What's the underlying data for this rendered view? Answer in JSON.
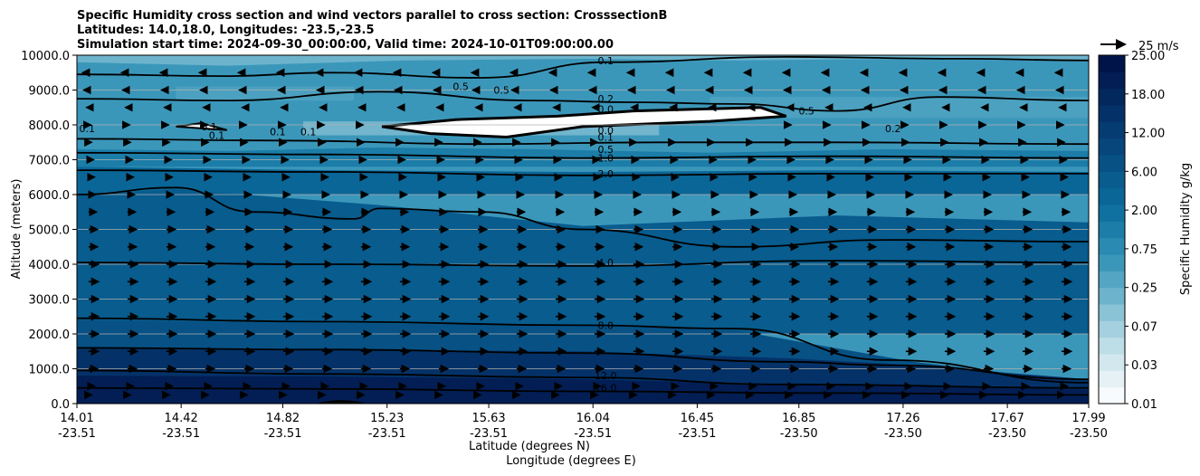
{
  "chart_data": {
    "type": "contourf",
    "title_lines": [
      "Specific Humidity cross section and wind vectors parallel to cross section: CrosssectionB",
      "Latitudes: 14.0,18.0, Longitudes: -23.5,-23.5",
      "Simulation start time: 2024-09-30_00:00:00, Valid time: 2024-10-01T09:00:00.00"
    ],
    "ylabel": "Altitude (meters)",
    "xlabel_lat": "Latitude (degrees N)",
    "xlabel_lon": "Longitude (degrees E)",
    "y_ticks": [
      "0.0",
      "1000.0",
      "2000.0",
      "3000.0",
      "4000.0",
      "5000.0",
      "6000.0",
      "7000.0",
      "8000.0",
      "9000.0",
      "10000.0"
    ],
    "ylim": [
      0,
      10000
    ],
    "grid": "horizontal",
    "x_ticks_lat": [
      "14.01",
      "14.42",
      "14.82",
      "15.23",
      "15.63",
      "16.04",
      "16.45",
      "16.85",
      "17.26",
      "17.67",
      "17.99"
    ],
    "x_ticks_lon": [
      "-23.51",
      "-23.51",
      "-23.51",
      "-23.51",
      "-23.51",
      "-23.51",
      "-23.51",
      "-23.50",
      "-23.50",
      "-23.50",
      "-23.50"
    ],
    "colorbar": {
      "label": "Specific Humidity g/kg",
      "tick_labels": [
        "0.01",
        "0.03",
        "0.07",
        "0.25",
        "0.75",
        "2.00",
        "6.00",
        "12.00",
        "18.00",
        "25.00"
      ],
      "colors": [
        "#f7fbfd",
        "#e6f1f5",
        "#d2e7ee",
        "#bddde7",
        "#a5d0df",
        "#8ac2d6",
        "#6db3cc",
        "#54a5c3",
        "#3b97ba",
        "#2a8ab1",
        "#1b7da8",
        "#0f719f",
        "#0a6697",
        "#085c8e",
        "#075185",
        "#06467b",
        "#053c72",
        "#043268",
        "#03285e",
        "#021e54",
        "#01144a"
      ]
    },
    "quiver_key": {
      "label": "25 m/s",
      "speed": 25
    },
    "contour_labels": [
      {
        "text": "0.1",
        "x": 16.09,
        "y": 9850
      },
      {
        "text": "0.5",
        "x": 15.52,
        "y": 9100
      },
      {
        "text": "0.5",
        "x": 15.68,
        "y": 9000
      },
      {
        "text": "0.2",
        "x": 16.09,
        "y": 8750
      },
      {
        "text": "0.0",
        "x": 16.09,
        "y": 8450
      },
      {
        "text": "0.5",
        "x": 16.88,
        "y": 8400
      },
      {
        "text": "0.2",
        "x": 17.22,
        "y": 7900
      },
      {
        "text": "0.0",
        "x": 16.09,
        "y": 7850
      },
      {
        "text": "0.1",
        "x": 16.09,
        "y": 7650
      },
      {
        "text": "0.5",
        "x": 16.09,
        "y": 7300
      },
      {
        "text": "1.0",
        "x": 16.09,
        "y": 7050
      },
      {
        "text": "2.0",
        "x": 16.09,
        "y": 6600
      },
      {
        "text": "4.0",
        "x": 16.09,
        "y": 4050
      },
      {
        "text": "8.0",
        "x": 16.09,
        "y": 2250
      },
      {
        "text": "12.0",
        "x": 16.09,
        "y": 800
      },
      {
        "text": "16.0",
        "x": 16.09,
        "y": 450
      },
      {
        "text": "0.1",
        "x": 14.53,
        "y": 7950
      },
      {
        "text": "0.1",
        "x": 14.56,
        "y": 7700
      },
      {
        "text": "0.1",
        "x": 14.8,
        "y": 7800
      },
      {
        "text": "0.1",
        "x": 14.92,
        "y": 7800
      },
      {
        "text": "0.1",
        "x": 14.05,
        "y": 7900
      }
    ],
    "wind_vectors": {
      "description": "u component along section (m/s) by altitude band",
      "levels_m": [
        250,
        500,
        1000,
        1500,
        2000,
        2500,
        3000,
        3500,
        4000,
        4500,
        5000,
        5500,
        6000,
        6500,
        7000,
        7500,
        8000,
        8500,
        9000,
        9500
      ],
      "u_ms": [
        3,
        6,
        9,
        10,
        10,
        10,
        10,
        10,
        10,
        9,
        9,
        8,
        7,
        6,
        5,
        3,
        2,
        -2,
        -5,
        -6
      ]
    }
  }
}
